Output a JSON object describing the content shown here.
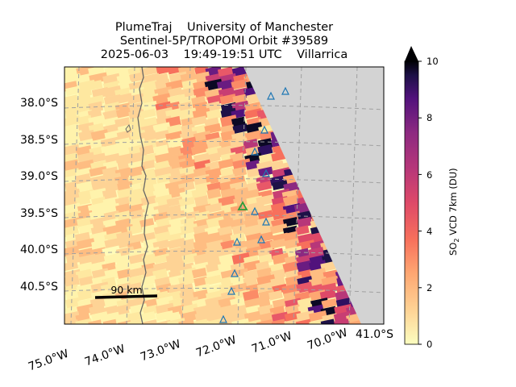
{
  "title": {
    "line1": "PlumeTraj    University of Manchester",
    "line2": "Sentinel-5P/TROPOMI Orbit #39589",
    "line3": "2025-06-03    19:49-19:51 UTC    Villarrica"
  },
  "map": {
    "lat_labels": [
      "38.0°S",
      "38.5°S",
      "39.0°S",
      "39.5°S",
      "40.0°S",
      "40.5°S"
    ],
    "lon_labels": [
      "75.0°W",
      "74.0°W",
      "73.0°W",
      "72.0°W",
      "71.0°W",
      "70.0°W"
    ],
    "corner_label": "41.0°S",
    "scale_bar_label": "90 km",
    "colors": {
      "no_data": "#d3d3d3",
      "coast": "#666666",
      "volcano_marker": "#2a9d3a",
      "other_volcano_marker": "#1f77b4"
    }
  },
  "colorbar": {
    "label_main": "SO",
    "label_sub": "2",
    "label_rest": " VCD 7km (DU)",
    "ticks": [
      "0",
      "2",
      "4",
      "6",
      "8",
      "10"
    ],
    "min": 0,
    "max": 10,
    "extend": "max",
    "colormap": "magma_r"
  }
}
